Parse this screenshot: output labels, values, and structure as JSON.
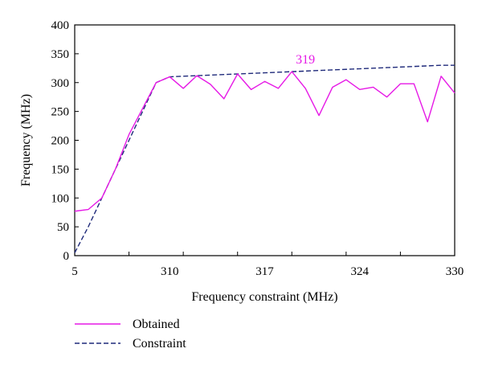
{
  "chart_data": {
    "type": "line",
    "xlabel": "Frequency constraint (MHz)",
    "ylabel": "Frequency (MHz)",
    "x_tick_labels": [
      "5",
      "310",
      "317",
      "324",
      "330"
    ],
    "y_ticks": [
      0,
      50,
      100,
      150,
      200,
      250,
      300,
      350,
      400
    ],
    "ylim": [
      0,
      400
    ],
    "grid": false,
    "legend_placement": "bottom-left",
    "annotation": {
      "text": "319",
      "x_index": 17,
      "y": 319
    },
    "colors": {
      "obtained": "#e619e6",
      "constraint": "#1f2a7a"
    },
    "series": [
      {
        "name": "Obtained",
        "style": "solid",
        "x_index": [
          0,
          1,
          2,
          3,
          4,
          5,
          6,
          7,
          8,
          9,
          10,
          11,
          12,
          13,
          14,
          15,
          16,
          17,
          18,
          19,
          20,
          21,
          22,
          23,
          24,
          25,
          26,
          27,
          28
        ],
        "values": [
          77,
          80,
          100,
          150,
          210,
          255,
          300,
          310,
          290,
          312,
          297,
          272,
          315,
          288,
          302,
          290,
          319,
          290,
          243,
          292,
          305,
          288,
          292,
          275,
          298,
          298,
          232,
          311,
          282
        ]
      },
      {
        "name": "Constraint",
        "style": "dashed",
        "x_index": [
          0,
          1,
          2,
          3,
          4,
          5,
          6,
          7,
          8,
          9,
          10,
          11,
          12,
          13,
          14,
          15,
          16,
          17,
          18,
          19,
          20,
          21,
          22,
          23,
          24,
          25,
          26,
          27,
          28
        ],
        "values": [
          5,
          50,
          100,
          150,
          200,
          250,
          300,
          310,
          311,
          312,
          313,
          314,
          315,
          316,
          317,
          318,
          319,
          320,
          321,
          322,
          323,
          324,
          325,
          326,
          327,
          328,
          329,
          330,
          330
        ]
      }
    ]
  }
}
